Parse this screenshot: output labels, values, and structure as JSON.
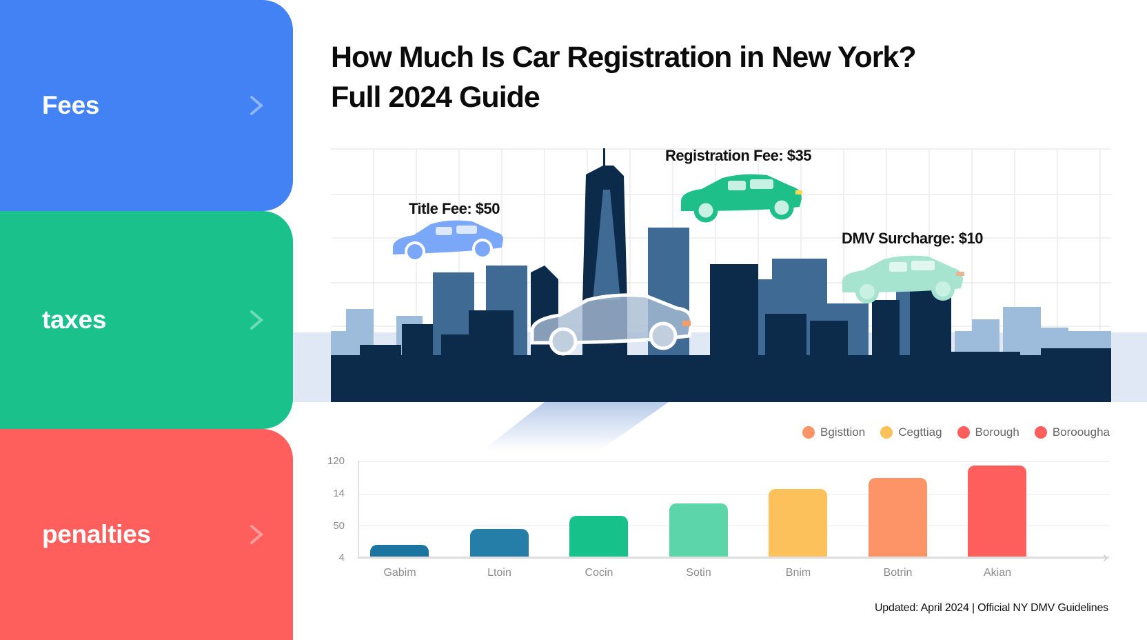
{
  "sidebar": {
    "items": [
      {
        "label": "Fees",
        "color": "#4282f5",
        "chevron": "chevron-right-icon"
      },
      {
        "label": "taxes",
        "color": "#1bc18b",
        "chevron": "chevron-right-icon"
      },
      {
        "label": "penalties",
        "color": "#fe5e5c",
        "chevron": "chevron-right-icon"
      }
    ]
  },
  "header": {
    "title_line1": "How Much Is Car Registration in New York?",
    "title_line2": "Full 2024 Guide"
  },
  "illustration": {
    "callouts": [
      {
        "label": "Title Fee: $50",
        "car_color": "#7aa7f7"
      },
      {
        "label": "Registration Fee: $35",
        "car_color": "#1fbf8a"
      },
      {
        "label": "DMV Surcharge: $10",
        "car_color": "#a6e4cf"
      }
    ],
    "skyline_colors": {
      "dark": "#0c2a4a",
      "mid": "#3f6a93",
      "light": "#9dbbdb",
      "band": "#dfe8f4"
    }
  },
  "legend": [
    {
      "label": "Bgisttion",
      "color": "#fd9467"
    },
    {
      "label": "Cegttiag",
      "color": "#fdc15b"
    },
    {
      "label": "Borough",
      "color": "#fe5e5c"
    },
    {
      "label": "Boroougha",
      "color": "#fe5e5c"
    }
  ],
  "chart_data": {
    "type": "bar",
    "title": "",
    "categories": [
      "Gabim",
      "Ltoin",
      "Cocin",
      "Sotin",
      "Bnim",
      "Botrin",
      "Akian"
    ],
    "values": [
      19,
      38,
      54,
      69,
      87,
      100,
      115
    ],
    "colors": [
      "#1c74a0",
      "#247ea7",
      "#16c18a",
      "#5dd5ab",
      "#fdc15b",
      "#fd9467",
      "#fe5e5c"
    ],
    "y_tick_labels": [
      "120",
      "14",
      "50",
      "4"
    ],
    "xlabel": "",
    "ylabel": "",
    "ylim": [
      4,
      120
    ],
    "grid": true,
    "legend_position": "top-right"
  },
  "footer": {
    "text": "Updated: April 2024 | Official NY DMV Guidelines"
  }
}
